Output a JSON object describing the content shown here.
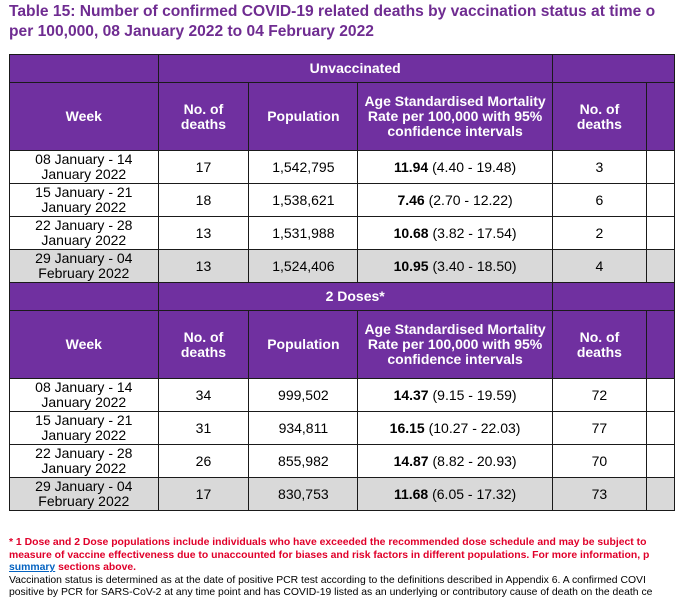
{
  "title": {
    "line1": "Table 15: Number of confirmed COVID-19 related deaths by vaccination status at time o",
    "line2": "per 100,000, 08 January 2022 to 04 February 2022"
  },
  "columns": {
    "week": "Week",
    "deaths": "No. of deaths",
    "population": "Population",
    "asmr": "Age Standardised Mortality Rate per 100,000 with 95% confidence intervals",
    "deaths_right": "No. of deaths"
  },
  "sections": [
    {
      "label": "Unvaccinated",
      "rows": [
        {
          "week": "08 January - 14 January 2022",
          "deaths": "17",
          "population": "1,542,795",
          "rate": "11.94",
          "ci": "(4.40 - 19.48)",
          "deaths_next": "3"
        },
        {
          "week": "15 January - 21 January 2022",
          "deaths": "18",
          "population": "1,538,621",
          "rate": "7.46",
          "ci": "(2.70 - 12.22)",
          "deaths_next": "6"
        },
        {
          "week": "22 January - 28 January 2022",
          "deaths": "13",
          "population": "1,531,988",
          "rate": "10.68",
          "ci": "(3.82 - 17.54)",
          "deaths_next": "2"
        },
        {
          "week": "29 January - 04 February 2022",
          "deaths": "13",
          "population": "1,524,406",
          "rate": "10.95",
          "ci": "(3.40 - 18.50)",
          "deaths_next": "4"
        }
      ]
    },
    {
      "label": "2 Doses*",
      "rows": [
        {
          "week": "08 January - 14 January 2022",
          "deaths": "34",
          "population": "999,502",
          "rate": "14.37",
          "ci": "(9.15 - 19.59)",
          "deaths_next": "72"
        },
        {
          "week": "15 January - 21 January 2022",
          "deaths": "31",
          "population": "934,811",
          "rate": "16.15",
          "ci": "(10.27 - 22.03)",
          "deaths_next": "77"
        },
        {
          "week": "22 January - 28 January 2022",
          "deaths": "26",
          "population": "855,982",
          "rate": "14.87",
          "ci": "(8.82 - 20.93)",
          "deaths_next": "70"
        },
        {
          "week": "29 January - 04 February 2022",
          "deaths": "17",
          "population": "830,753",
          "rate": "11.68",
          "ci": "(6.05 - 17.32)",
          "deaths_next": "73"
        }
      ]
    }
  ],
  "notes": {
    "footnote_line1": "* 1 Dose and 2 Dose populations include individuals who have exceeded the recommended dose schedule and may be subject to",
    "footnote_line2": "measure of vaccine effectiveness due to unaccounted for biases and risk factors in different populations. For more information, p",
    "link_text": "summary",
    "link_suffix": " sections above.",
    "status_line1": "Vaccination status is determined as at the date of positive PCR test according to the definitions described in Appendix 6. A confirmed COVI",
    "status_line2": "positive by PCR for SARS-CoV-2 at any time point and has COVID-19 listed as an underlying or contributory cause of death on the death ce"
  },
  "colors": {
    "header_purple": "#7030a0",
    "title_purple": "#6f2c91",
    "shaded_row": "#d9d9d9",
    "footnote_red": "#e0002a",
    "link_blue": "#0563c1"
  }
}
